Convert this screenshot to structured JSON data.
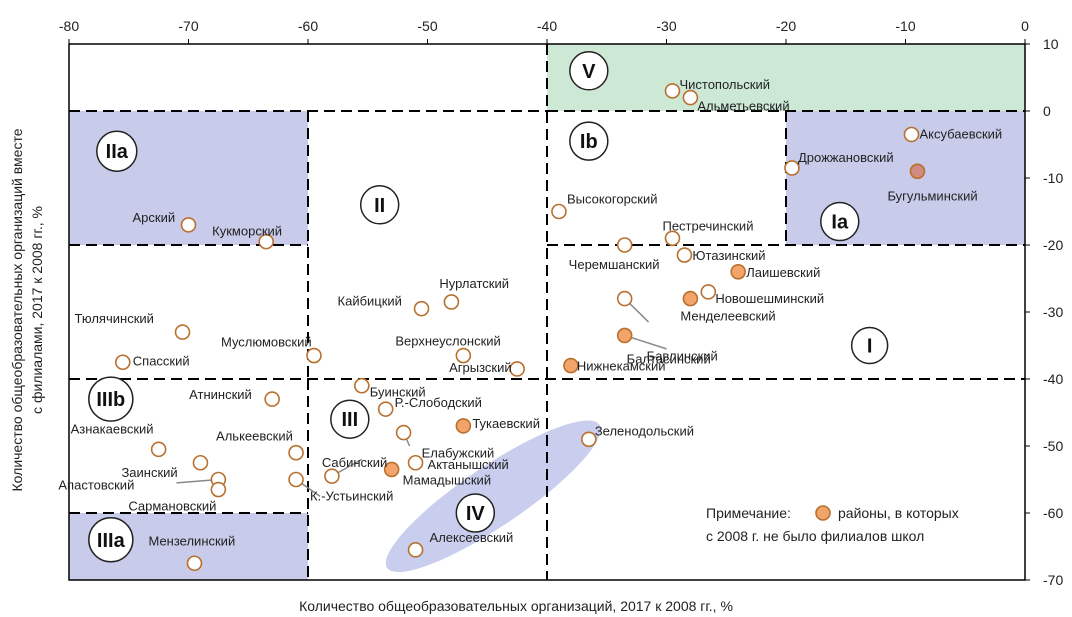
{
  "colors": {
    "green_zone": "#cde9d6",
    "blue_zone": "#c9cbea",
    "ellipse": "#c3c8ec",
    "marker_stroke": "#b8702e",
    "marker_fill": "#f2a46a",
    "special_fill": "#d18a80",
    "leader": "#888888"
  },
  "chart_data": {
    "type": "scatter",
    "xlabel": "Количество общеобразовательных организаций, 2017 к 2008 гг., %",
    "ylabel": "Количество общеобразовательных организаций вместе с филиалами, 2017 к 2008 гг., %",
    "xlim": [
      -80,
      0
    ],
    "ylim": [
      -70,
      10
    ],
    "x_ticks": [
      "-80",
      "-70",
      "-60",
      "-50",
      "-40",
      "-30",
      "-20",
      "-10",
      "0"
    ],
    "y_ticks": [
      "10",
      "0",
      "-10",
      "-20",
      "-30",
      "-40",
      "-50",
      "-60",
      "-70"
    ],
    "x_axis_position": "top",
    "y_axis_position": "right",
    "grid": false,
    "zones": [
      {
        "label": "V",
        "x": [
          -40,
          0
        ],
        "y": [
          0,
          10
        ],
        "shaded": "green",
        "label_at": [
          -36.5,
          6
        ]
      },
      {
        "label": "Ib",
        "x": [
          -40,
          -20
        ],
        "y": [
          -20,
          0
        ],
        "shaded": "none",
        "label_at": [
          -36.5,
          -4.5
        ]
      },
      {
        "label": "Ia",
        "x": [
          -20,
          0
        ],
        "y": [
          -20,
          0
        ],
        "shaded": "blue",
        "label_at": [
          -15.5,
          -16.5
        ]
      },
      {
        "label": "IIa",
        "x": [
          -80,
          -60
        ],
        "y": [
          -20,
          0
        ],
        "shaded": "blue",
        "label_at": [
          -76,
          -6
        ]
      },
      {
        "label": "II",
        "x": [
          -60,
          -40
        ],
        "y": [
          -40,
          0
        ],
        "shaded": "none",
        "label_at": [
          -54,
          -14
        ]
      },
      {
        "label": "I",
        "x": [
          -40,
          0
        ],
        "y": [
          -40,
          -20
        ],
        "shaded": "none",
        "label_at": [
          -13,
          -35
        ]
      },
      {
        "label": "IIIb",
        "x": [
          -80,
          -60
        ],
        "y": [
          -60,
          -40
        ],
        "shaded": "none",
        "label_at": [
          -76.5,
          -43
        ]
      },
      {
        "label": "III",
        "x": [
          -60,
          -40
        ],
        "y": [
          -70,
          -40
        ],
        "shaded": "none",
        "label_at": [
          -56.5,
          -46
        ]
      },
      {
        "label": "IIIa",
        "x": [
          -80,
          -60
        ],
        "y": [
          -70,
          -60
        ],
        "shaded": "blue",
        "label_at": [
          -76.5,
          -64
        ]
      },
      {
        "label": "IV",
        "x": [],
        "y": [],
        "shaded": "ellipse",
        "label_at": [
          -46,
          -60
        ]
      }
    ],
    "points": [
      {
        "name": "Чистопольский",
        "x": -29.5,
        "y": 3,
        "filled": false
      },
      {
        "name": "Альметьевский",
        "x": -28,
        "y": 2,
        "filled": false
      },
      {
        "name": "Аксубаевский",
        "x": -9.5,
        "y": -3.5,
        "filled": false
      },
      {
        "name": "Дрожжановский",
        "x": -19.5,
        "y": -8.5,
        "filled": false
      },
      {
        "name": "Бугульминский",
        "x": -9,
        "y": -9,
        "filled": true,
        "special": true
      },
      {
        "name": "Высокогорский",
        "x": -39,
        "y": -15,
        "filled": false
      },
      {
        "name": "Пестречинский",
        "x": -29.5,
        "y": -19,
        "filled": false
      },
      {
        "name": "Черемшанский",
        "x": -33.5,
        "y": -20,
        "filled": false
      },
      {
        "name": "Ютазинский",
        "x": -28.5,
        "y": -21.5,
        "filled": false
      },
      {
        "name": "Лаишевский",
        "x": -24,
        "y": -24,
        "filled": true
      },
      {
        "name": "Новошешминский",
        "x": -26.5,
        "y": -27,
        "filled": false
      },
      {
        "name": "Менделеевский",
        "x": -28,
        "y": -28,
        "filled": true
      },
      {
        "name": "Балтасинский",
        "x": -33.5,
        "y": -28,
        "filled": false
      },
      {
        "name": "Бавлинский",
        "x": -33.5,
        "y": -33.5,
        "filled": true
      },
      {
        "name": "Нижнекамский",
        "x": -38,
        "y": -38,
        "filled": true
      },
      {
        "name": "Арский",
        "x": -70,
        "y": -17,
        "filled": false
      },
      {
        "name": "Кукморский",
        "x": -63.5,
        "y": -19.5,
        "filled": false
      },
      {
        "name": "Нурлатский",
        "x": -48,
        "y": -28.5,
        "filled": false
      },
      {
        "name": "Кайбицкий",
        "x": -50.5,
        "y": -29.5,
        "filled": false
      },
      {
        "name": "Тюлячинский",
        "x": -70.5,
        "y": -33,
        "filled": false
      },
      {
        "name": "Муслюмовский",
        "x": -59.5,
        "y": -36.5,
        "filled": false
      },
      {
        "name": "Спасский",
        "x": -75.5,
        "y": -37.5,
        "filled": false
      },
      {
        "name": "Верхнеуслонский",
        "x": -47,
        "y": -36.5,
        "filled": false
      },
      {
        "name": "Агрызский",
        "x": -42.5,
        "y": -38.5,
        "filled": false
      },
      {
        "name": "Буинский",
        "x": -55.5,
        "y": -41,
        "filled": false
      },
      {
        "name": "Атнинский",
        "x": -63,
        "y": -43,
        "filled": false
      },
      {
        "name": "Р.-Слободский",
        "x": -53.5,
        "y": -44.5,
        "filled": false
      },
      {
        "name": "Тукаевский",
        "x": -47,
        "y": -47,
        "filled": true
      },
      {
        "name": "Елабужский",
        "x": -52,
        "y": -48,
        "filled": false
      },
      {
        "name": "Зеленодольский",
        "x": -36.5,
        "y": -49,
        "filled": false
      },
      {
        "name": "Азнакаевский",
        "x": -72.5,
        "y": -50.5,
        "filled": false
      },
      {
        "name": "Алькеевский",
        "x": -61,
        "y": -51,
        "filled": false
      },
      {
        "name": "Заинский",
        "x": -69,
        "y": -52.5,
        "filled": false
      },
      {
        "name": "Актанышский",
        "x": -51,
        "y": -52.5,
        "filled": false
      },
      {
        "name": "Сабинский",
        "x": -58,
        "y": -54.5,
        "filled": false
      },
      {
        "name": "Мамадышский",
        "x": -53,
        "y": -53.5,
        "filled": true
      },
      {
        "name": "Апастовский",
        "x": -67.5,
        "y": -55,
        "filled": false
      },
      {
        "name": "Сармановский",
        "x": -67.5,
        "y": -56.5,
        "filled": false
      },
      {
        "name": "К.-Устьинский",
        "x": -61,
        "y": -55,
        "filled": false
      },
      {
        "name": "Алексеевский",
        "x": -51,
        "y": -65.5,
        "filled": false
      },
      {
        "name": "Мензелинский",
        "x": -69.5,
        "y": -67.5,
        "filled": false
      }
    ],
    "legend": {
      "position": "bottom-right",
      "prefix": "Примечание:",
      "text_line1": "районы, в которых",
      "text_line2": "с 2008 г. не было филиалов школ"
    }
  }
}
